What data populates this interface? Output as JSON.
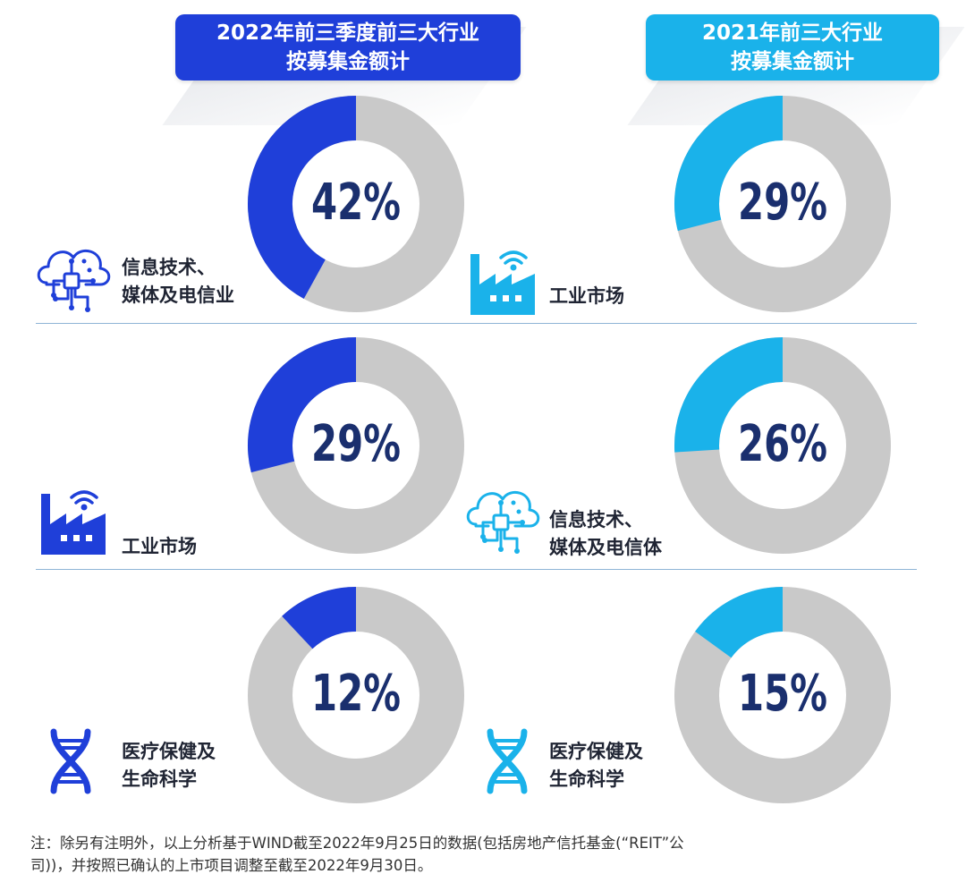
{
  "colors": {
    "blue_2022": "#1f3fd9",
    "blue_2021": "#1ab2ea",
    "gray": "#c9c9c9",
    "pct_text": "#1a2f6e"
  },
  "headers": {
    "left": {
      "line1": "2022年前三季度前三大行业",
      "line2": "按募集金额计"
    },
    "right": {
      "line1": "2021年前三大行业",
      "line2": "按募集金额计"
    }
  },
  "chart_data": [
    {
      "type": "pie",
      "series_group": "2022年前三季度前三大行业 按募集金额计",
      "slices": [
        {
          "label": "信息技术、媒体及电信业",
          "value": 42
        },
        {
          "label": "工业市场",
          "value": 29
        },
        {
          "label": "医疗保健及生命科学",
          "value": 12
        }
      ]
    },
    {
      "type": "pie",
      "series_group": "2021年前三大行业 按募集金额计",
      "slices": [
        {
          "label": "工业市场",
          "value": 29
        },
        {
          "label": "信息技术、媒体及电信体",
          "value": 26
        },
        {
          "label": "医疗保健及生命科学",
          "value": 15
        }
      ]
    }
  ],
  "donuts": [
    {
      "pct": "42%",
      "value": 42,
      "color": "blue_2022"
    },
    {
      "pct": "29%",
      "value": 29,
      "color": "blue_2021"
    },
    {
      "pct": "29%",
      "value": 29,
      "color": "blue_2022"
    },
    {
      "pct": "26%",
      "value": 26,
      "color": "blue_2021"
    },
    {
      "pct": "12%",
      "value": 12,
      "color": "blue_2022"
    },
    {
      "pct": "15%",
      "value": 15,
      "color": "blue_2021"
    }
  ],
  "labels": {
    "l1": {
      "line1": "信息技术、",
      "line2": "媒体及电信业",
      "icon": "cloud-circuit-icon"
    },
    "r1": {
      "line1": "工业市场",
      "icon": "factory-wifi-icon"
    },
    "l2": {
      "line1": "工业市场",
      "icon": "factory-wifi-icon"
    },
    "r2": {
      "line1": "信息技术、",
      "line2": "媒体及电信体",
      "icon": "cloud-circuit-icon"
    },
    "l3": {
      "line1": "医疗保健及",
      "line2": "生命科学",
      "icon": "dna-icon"
    },
    "r3": {
      "line1": "医疗保健及",
      "line2": "生命科学",
      "icon": "dna-icon"
    }
  },
  "footnote": {
    "line1": "注：除另有注明外，以上分析基于WIND截至2022年9月25日的数据(包括房地产信托基金(“REIT”公",
    "line2": "司))，并按照已确认的上市项目调整至截至2022年9月30日。"
  }
}
